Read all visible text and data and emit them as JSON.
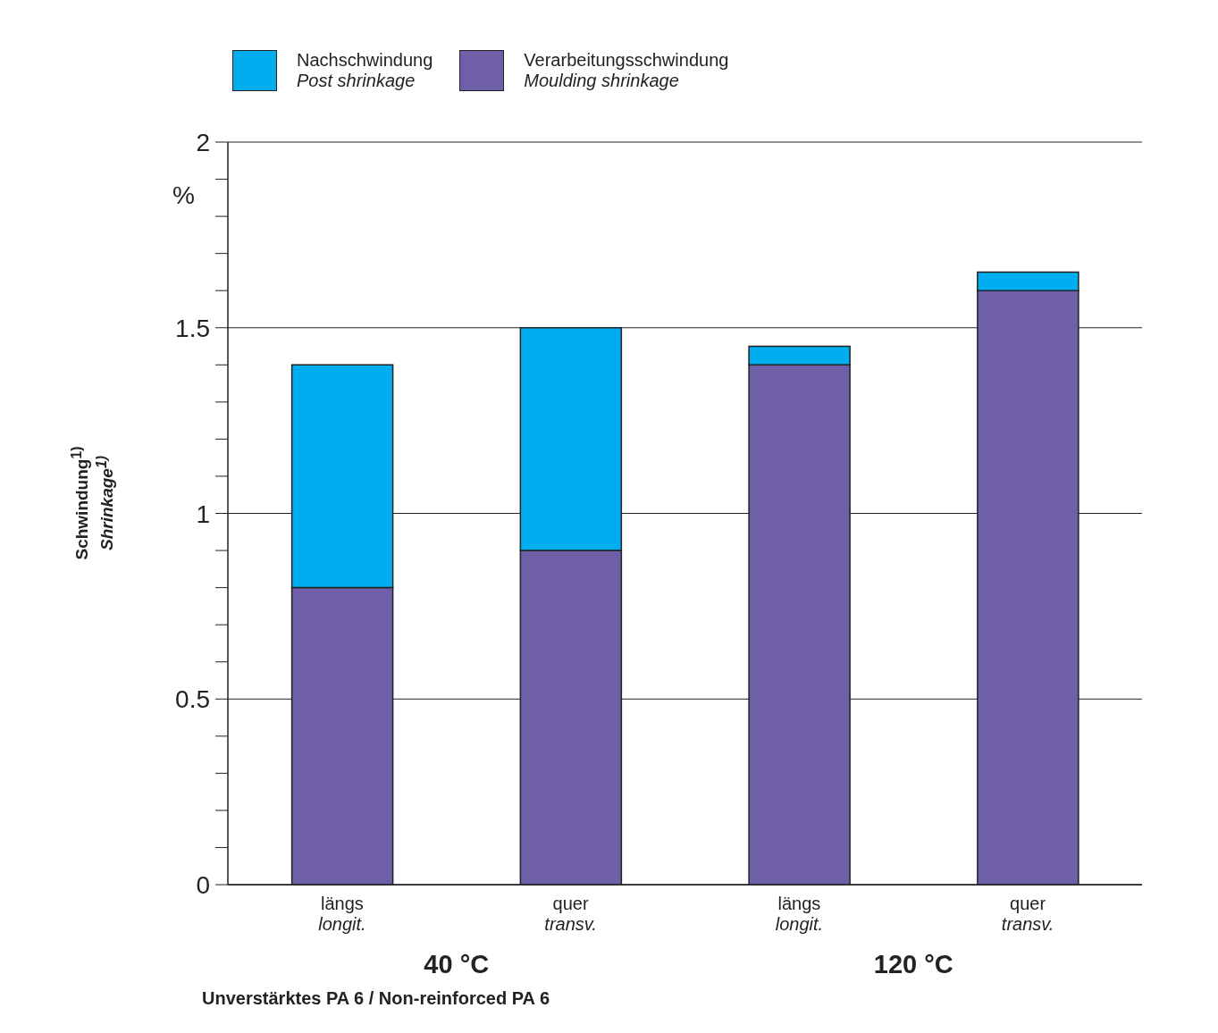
{
  "chart_data": {
    "type": "bar",
    "stacked": true,
    "categories": [
      "längs\nlongit.",
      "quer\ntransv.",
      "längs\nlongit.",
      "quer\ntransv."
    ],
    "series": [
      {
        "name": "Verarbeitungsschwindung\nMoulding shrinkage",
        "color": "#6e5fa8",
        "values": [
          0.8,
          0.9,
          1.4,
          1.6
        ]
      },
      {
        "name": "Nachschwindung\nPost shrinkage",
        "color": "#00aeef",
        "values": [
          0.6,
          0.6,
          0.05,
          0.05
        ]
      }
    ],
    "ylabel": "Schwindung$^{1)}$\nShrinkage$^{1)}$",
    "ylim": [
      0,
      2
    ],
    "yticks": [
      0,
      {
        "value": 0.1,
        "label": null
      },
      {
        "value": 0.2,
        "label": null
      },
      {
        "value": 0.3,
        "label": null
      },
      {
        "value": 0.4,
        "label": null
      },
      0.5,
      {
        "value": 0.6,
        "label": null
      },
      {
        "value": 0.7,
        "label": null
      },
      {
        "value": 0.8,
        "label": null
      },
      {
        "value": 0.9,
        "label": null
      },
      1,
      {
        "value": 1.1,
        "label": null
      },
      {
        "value": 1.2,
        "label": null
      },
      {
        "value": 1.3,
        "label": null
      },
      {
        "value": 1.4,
        "label": null
      },
      1.5,
      {
        "value": 1.6,
        "label": null
      },
      {
        "value": 1.7,
        "label": null
      },
      {
        "value": 1.8,
        "label": null
      },
      {
        "value": 1.9,
        "label": null
      },
      2
    ],
    "grid": "y",
    "legend": "top left",
    "annotations": [
      "%",
      "40 °C",
      "120 °C",
      "Unverstärktes PA 6 / Non-reinforced PA 6"
    ]
  }
}
